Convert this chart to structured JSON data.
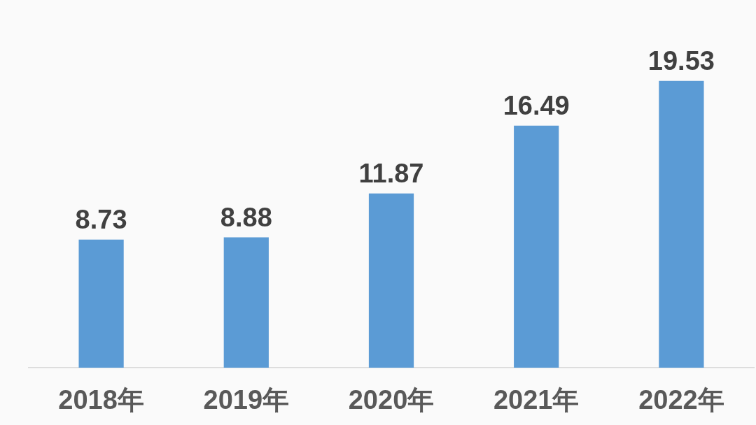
{
  "chart_data": {
    "type": "bar",
    "categories": [
      "2018年",
      "2019年",
      "2020年",
      "2021年",
      "2022年"
    ],
    "values": [
      8.73,
      8.88,
      11.87,
      16.49,
      19.53
    ],
    "color": "#5b9bd5",
    "data_labels": true
  }
}
